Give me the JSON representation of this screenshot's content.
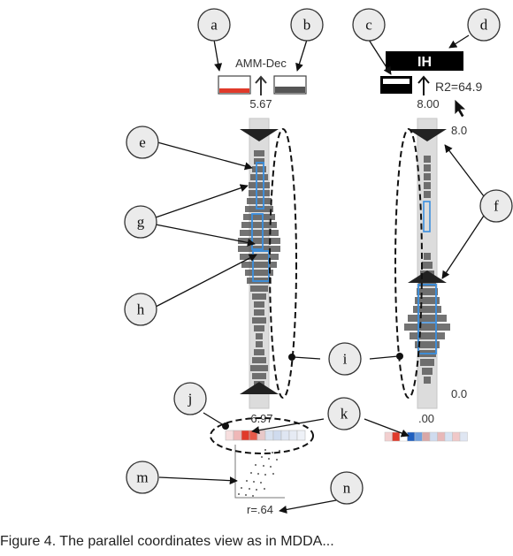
{
  "callouts": [
    {
      "id": "a",
      "letter": "a"
    },
    {
      "id": "b",
      "letter": "b"
    },
    {
      "id": "c",
      "letter": "c"
    },
    {
      "id": "d",
      "letter": "d"
    },
    {
      "id": "e",
      "letter": "e"
    },
    {
      "id": "f",
      "letter": "f"
    },
    {
      "id": "g",
      "letter": "g"
    },
    {
      "id": "h",
      "letter": "h"
    },
    {
      "id": "i",
      "letter": "i"
    },
    {
      "id": "j",
      "letter": "j"
    },
    {
      "id": "k",
      "letter": "k"
    },
    {
      "id": "m",
      "letter": "m"
    },
    {
      "id": "n",
      "letter": "n"
    }
  ],
  "left_axis": {
    "name": "AMM-Dec",
    "top_value": "5.67",
    "bottom_value": "6.97",
    "correlation": "r=.64"
  },
  "right_axis": {
    "name": "IH",
    "r2": "R2=64.9",
    "top_value": "8.00",
    "scale_top": "8.0",
    "scale_bottom": "0.0",
    "bottom_value": ".00"
  },
  "colors": {
    "highlight": "#e03a2a",
    "selection": "#3a8fe0",
    "bar": "#555555",
    "track": "#dcdcdc"
  },
  "caption": "Figure 4.   The parallel coordinates view as in MDDA..."
}
